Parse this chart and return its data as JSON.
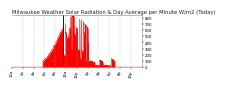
{
  "title": "Milwaukee Weather Solar Radiation & Day Average per Minute W/m2 (Today)",
  "bg_color": "#ffffff",
  "fill_color": "#ff0000",
  "line_color": "#dd0000",
  "current_marker_color": "#0000cc",
  "ylim": [
    0,
    850
  ],
  "ytick_values": [
    0,
    100,
    200,
    300,
    400,
    500,
    600,
    700,
    800
  ],
  "num_points": 1440,
  "peak_minute": 680,
  "peak_value": 820,
  "current_minute": 570,
  "grid_color": "#aaaaaa",
  "title_fontsize": 3.8,
  "tick_fontsize": 2.8,
  "sunrise": 340,
  "sunset": 1140
}
